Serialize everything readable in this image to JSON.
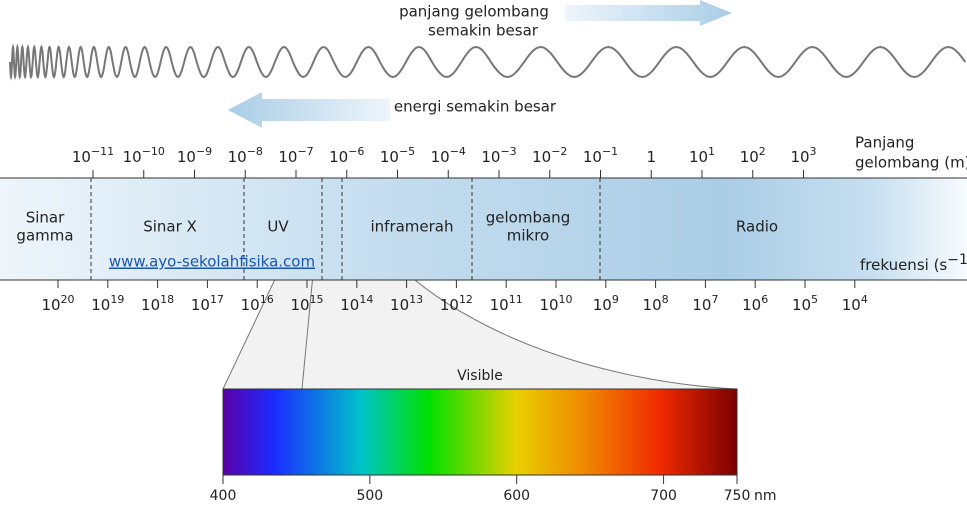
{
  "header": {
    "wavelength_note": [
      "panjang gelombang",
      "semakin besar"
    ],
    "energy_note": "energi semakin besar"
  },
  "wavelength_axis": {
    "label": [
      "Panjang",
      "gelombang (m)"
    ],
    "ticks": [
      {
        "base": "10",
        "exponent": "−11"
      },
      {
        "base": "10",
        "exponent": "−10"
      },
      {
        "base": "10",
        "exponent": "−9"
      },
      {
        "base": "10",
        "exponent": "−8"
      },
      {
        "base": "10",
        "exponent": "−7"
      },
      {
        "base": "10",
        "exponent": "−6"
      },
      {
        "base": "10",
        "exponent": "−5"
      },
      {
        "base": "10",
        "exponent": "−4"
      },
      {
        "base": "10",
        "exponent": "−3"
      },
      {
        "base": "10",
        "exponent": "−2"
      },
      {
        "base": "10",
        "exponent": "−1"
      },
      {
        "base": "1"
      },
      {
        "base": "10",
        "exponent": "1"
      },
      {
        "base": "10",
        "exponent": "2"
      },
      {
        "base": "10",
        "exponent": "3"
      }
    ]
  },
  "frequency_axis": {
    "label": {
      "base": "frekuensi (s",
      "exponent": "−1",
      "tail": ")"
    },
    "ticks": [
      {
        "base": "10",
        "exponent": "20"
      },
      {
        "base": "10",
        "exponent": "19"
      },
      {
        "base": "10",
        "exponent": "18"
      },
      {
        "base": "10",
        "exponent": "17"
      },
      {
        "base": "10",
        "exponent": "16"
      },
      {
        "base": "10",
        "exponent": "15"
      },
      {
        "base": "10",
        "exponent": "14"
      },
      {
        "base": "10",
        "exponent": "13"
      },
      {
        "base": "10",
        "exponent": "12"
      },
      {
        "base": "10",
        "exponent": "11"
      },
      {
        "base": "10",
        "exponent": "10"
      },
      {
        "base": "10",
        "exponent": "9"
      },
      {
        "base": "10",
        "exponent": "8"
      },
      {
        "base": "10",
        "exponent": "7"
      },
      {
        "base": "10",
        "exponent": "6"
      },
      {
        "base": "10",
        "exponent": "5"
      },
      {
        "base": "10",
        "exponent": "4"
      }
    ]
  },
  "regions": [
    {
      "label": [
        "Sinar",
        "gamma"
      ]
    },
    {
      "label": [
        "Sinar X"
      ]
    },
    {
      "label": [
        "UV"
      ]
    },
    {
      "label": [
        "inframerah"
      ]
    },
    {
      "label": [
        "gelombang",
        "mikro"
      ]
    },
    {
      "label": [
        "Radio"
      ]
    }
  ],
  "link": "www.ayo-sekolahfisika.com",
  "visible": {
    "title": "Visible",
    "range": [
      400,
      750
    ],
    "ticks": [
      400,
      500,
      600,
      700,
      750
    ],
    "unit": "nm"
  }
}
